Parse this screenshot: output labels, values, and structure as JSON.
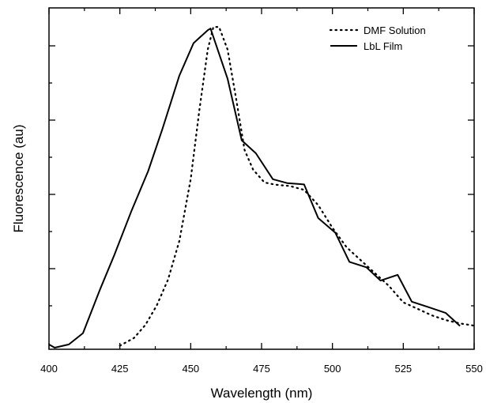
{
  "chart_data": {
    "type": "line",
    "xlabel": "Wavelength (nm)",
    "ylabel": "Fluorescence (au)",
    "xlim": [
      400,
      550
    ],
    "ylim": [
      0,
      1.0
    ],
    "x_ticks": [
      "400",
      "425",
      "450",
      "475",
      "500",
      "525",
      "550"
    ],
    "y_tick_labels_shown": false,
    "legend_position": "top-right",
    "series": [
      {
        "name": "DMF Solution",
        "style": "dotted",
        "color": "#000000",
        "x": [
          425,
          430,
          434,
          438,
          442,
          446,
          450,
          453,
          456,
          458,
          460,
          463,
          466,
          469,
          472,
          476,
          480,
          485,
          490,
          495,
          500,
          505,
          510,
          515,
          520,
          525,
          530,
          535,
          540,
          545,
          550
        ],
        "y": [
          0.006,
          0.03,
          0.07,
          0.13,
          0.21,
          0.33,
          0.52,
          0.73,
          0.92,
          0.99,
          0.99,
          0.92,
          0.77,
          0.61,
          0.55,
          0.51,
          0.503,
          0.499,
          0.487,
          0.44,
          0.37,
          0.31,
          0.27,
          0.23,
          0.19,
          0.14,
          0.12,
          0.1,
          0.085,
          0.075,
          0.068
        ]
      },
      {
        "name": "LbL Film",
        "style": "solid",
        "color": "#000000",
        "x": [
          400,
          402,
          407,
          412,
          418,
          423,
          429,
          435,
          440,
          446,
          451,
          456,
          457,
          463,
          468,
          473,
          479,
          484,
          490,
          495,
          501,
          506,
          512,
          517,
          523,
          528,
          534,
          540,
          545
        ],
        "y": [
          0.01,
          0.0,
          0.01,
          0.045,
          0.18,
          0.285,
          0.42,
          0.545,
          0.675,
          0.84,
          0.94,
          0.98,
          0.985,
          0.83,
          0.64,
          0.6,
          0.52,
          0.508,
          0.504,
          0.4,
          0.355,
          0.265,
          0.248,
          0.207,
          0.225,
          0.142,
          0.125,
          0.107,
          0.067
        ]
      }
    ]
  }
}
